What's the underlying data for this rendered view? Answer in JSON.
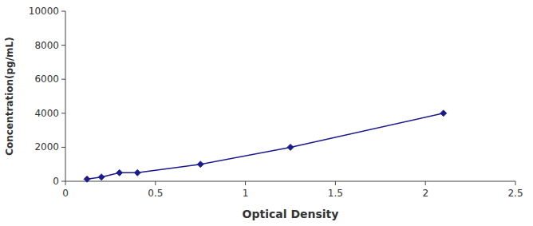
{
  "chart_data": {
    "type": "line",
    "x_label": "Optical Density",
    "y_label": "Concentration(pg/mL)",
    "x": [
      0.12,
      0.2,
      0.3,
      0.4,
      0.75,
      1.25,
      2.1
    ],
    "values": [
      125,
      250,
      500,
      500,
      1000,
      2000,
      4000
    ],
    "color": "#1a1a8c",
    "marker": "diamond",
    "line_style": "solid",
    "xlim": [
      0,
      2.5
    ],
    "ylim": [
      0,
      10000
    ],
    "xticks": [
      0,
      0.5,
      1,
      1.5,
      2,
      2.5
    ],
    "yticks": [
      0,
      2000,
      4000,
      6000,
      8000,
      10000
    ]
  }
}
